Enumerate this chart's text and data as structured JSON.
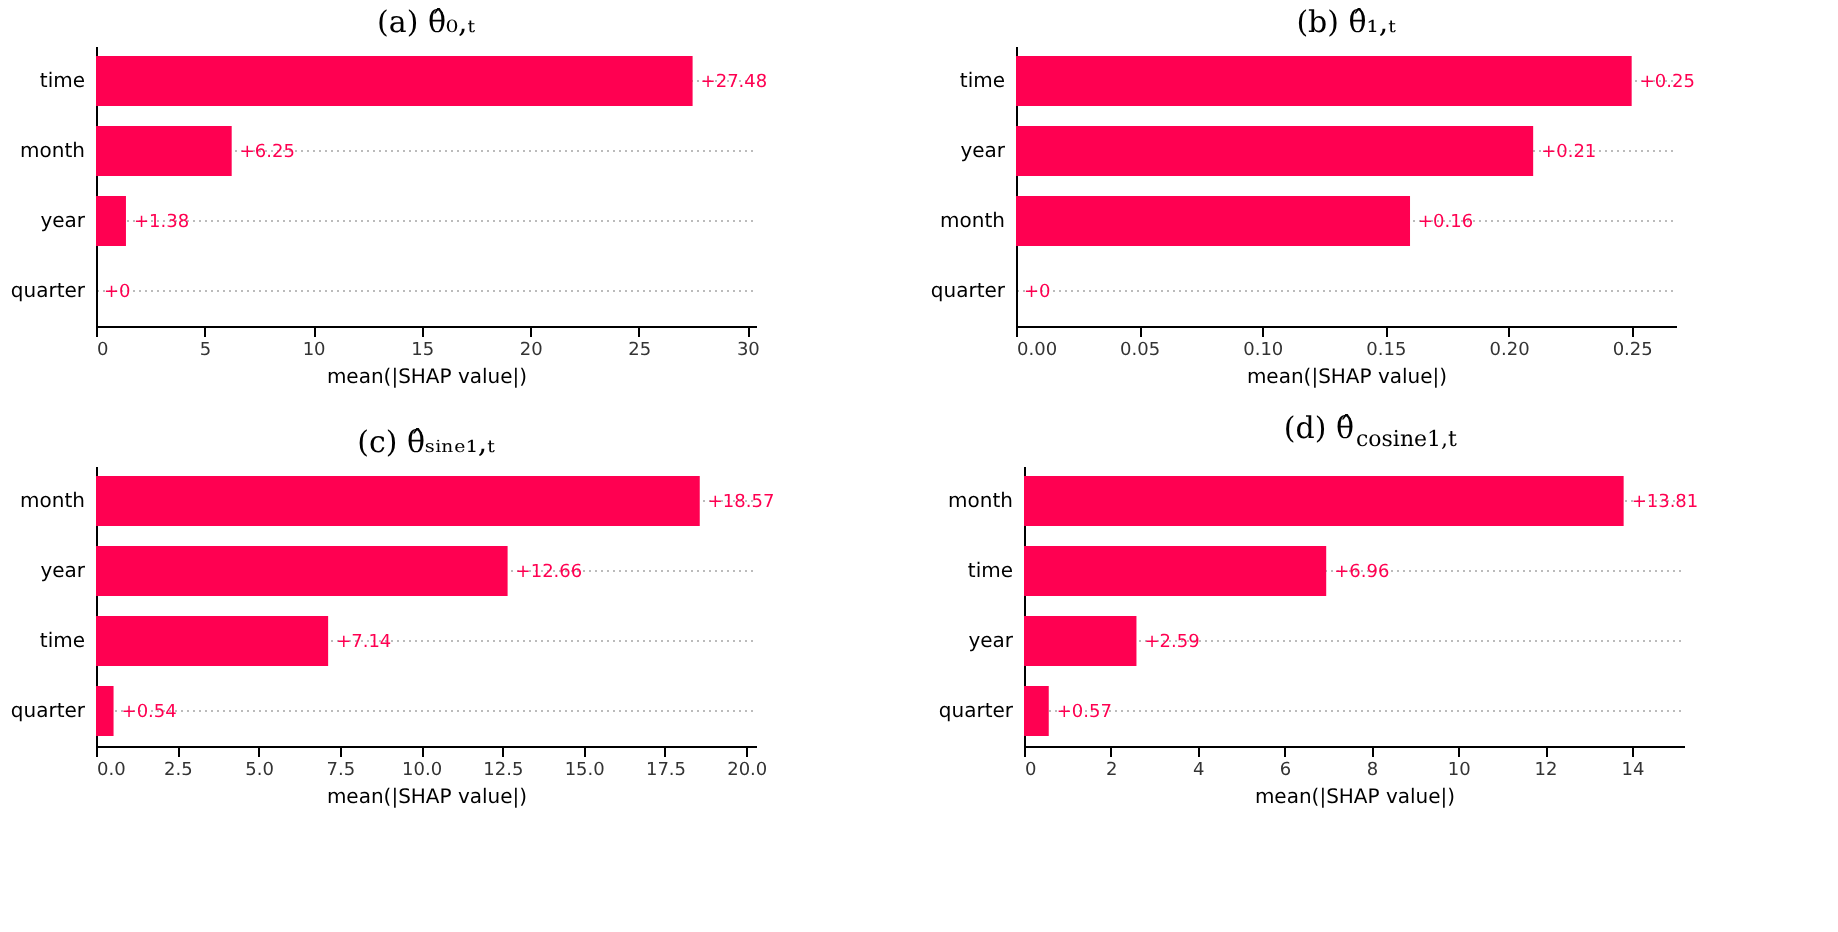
{
  "chart_data": [
    {
      "type": "bar",
      "orientation": "horizontal",
      "title": "(a) θ̂₀,ₜ",
      "xlabel": "mean(|SHAP value|)",
      "categories": [
        "time",
        "month",
        "year",
        "quarter"
      ],
      "values": [
        27.48,
        6.25,
        1.38,
        0
      ],
      "value_labels": [
        "+27.48",
        "+6.25",
        "+1.38",
        "+0"
      ],
      "color": "#ff0051",
      "xlim": [
        0,
        30.4
      ],
      "xticks": [
        0,
        5,
        10,
        15,
        20,
        25,
        30
      ],
      "grid": "y"
    },
    {
      "type": "bar",
      "orientation": "horizontal",
      "title": "(b) θ̂₁,ₜ",
      "xlabel": "mean(|SHAP value|)",
      "categories": [
        "time",
        "year",
        "month",
        "quarter"
      ],
      "values": [
        0.25,
        0.21,
        0.16,
        0
      ],
      "value_labels": [
        "+0.25",
        "+0.21",
        "+0.16",
        "+0"
      ],
      "color": "#ff0051",
      "xlim": [
        0,
        0.268
      ],
      "xticks": [
        {
          "value": 0,
          "label": "0.00"
        },
        {
          "value": 0.05,
          "label": "0.05"
        },
        {
          "value": 0.1,
          "label": "0.10"
        },
        {
          "value": 0.15,
          "label": "0.15"
        },
        {
          "value": 0.2,
          "label": "0.20"
        },
        {
          "value": 0.25,
          "label": "0.25"
        }
      ],
      "grid": "y"
    },
    {
      "type": "bar",
      "orientation": "horizontal",
      "title": "(c) θ̂ₛᵢₙₑ₁,ₜ",
      "xlabel": "mean(|SHAP value|)",
      "categories": [
        "month",
        "year",
        "time",
        "quarter"
      ],
      "values": [
        18.57,
        12.66,
        7.14,
        0.54
      ],
      "value_labels": [
        "+18.57",
        "+12.66",
        "+7.14",
        "+0.54"
      ],
      "color": "#ff0051",
      "xlim": [
        0,
        20.3
      ],
      "xticks": [
        {
          "value": 0,
          "label": "0.0"
        },
        {
          "value": 2.5,
          "label": "2.5"
        },
        {
          "value": 5,
          "label": "5.0"
        },
        {
          "value": 7.5,
          "label": "7.5"
        },
        {
          "value": 10,
          "label": "10.0"
        },
        {
          "value": 12.5,
          "label": "12.5"
        },
        {
          "value": 15,
          "label": "15.0"
        },
        {
          "value": 17.5,
          "label": "17.5"
        },
        {
          "value": 20,
          "label": "20.0"
        }
      ],
      "grid": "y"
    },
    {
      "type": "bar",
      "orientation": "horizontal",
      "title": "(d) θ̂$_{cosine1,t}$",
      "xlabel": "mean(|SHAP value|)",
      "categories": [
        "month",
        "time",
        "year",
        "quarter"
      ],
      "values": [
        13.81,
        6.96,
        2.59,
        0.57
      ],
      "value_labels": [
        "+13.81",
        "+6.96",
        "+2.59",
        "+0.57"
      ],
      "color": "#ff0051",
      "xlim": [
        0,
        15.2
      ],
      "xticks": [
        0,
        2,
        4,
        6,
        8,
        10,
        12,
        14
      ],
      "grid": "y"
    }
  ]
}
